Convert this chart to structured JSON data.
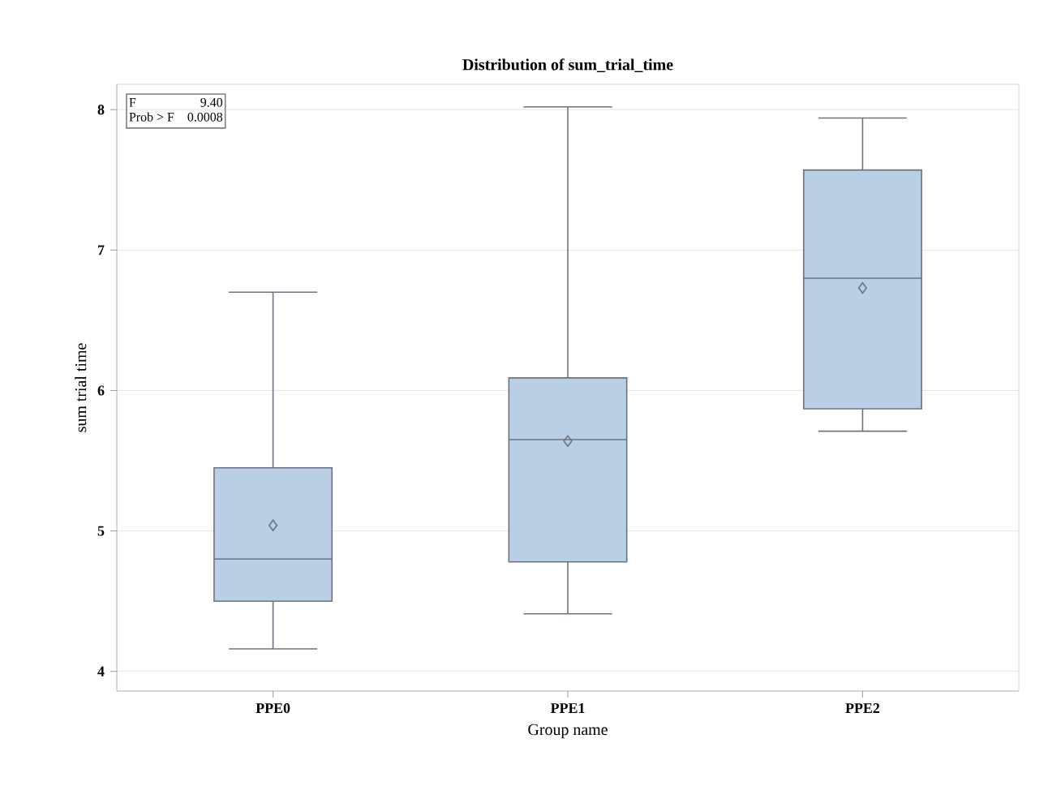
{
  "chart_data": {
    "type": "box",
    "title": "Distribution of sum_trial_time",
    "xlabel": "Group name",
    "ylabel": "sum trial time",
    "categories": [
      "PPE0",
      "PPE1",
      "PPE2"
    ],
    "boxes": [
      {
        "low": 4.16,
        "q1": 4.5,
        "median": 4.8,
        "q3": 5.45,
        "high": 6.7,
        "mean": 5.04
      },
      {
        "low": 4.41,
        "q1": 4.78,
        "median": 5.65,
        "q3": 6.09,
        "high": 8.02,
        "mean": 5.64
      },
      {
        "low": 5.71,
        "q1": 5.87,
        "median": 6.8,
        "q3": 7.57,
        "high": 7.94,
        "mean": 6.73
      }
    ],
    "color": "#b8cfe6",
    "marker": "diamond",
    "ylim": [
      3.86,
      8.18
    ],
    "yticks": [
      4,
      5,
      6,
      7,
      8
    ],
    "grid": "y",
    "annotations": [
      "F",
      "9.40",
      "Prob > F",
      "0.0008"
    ]
  }
}
